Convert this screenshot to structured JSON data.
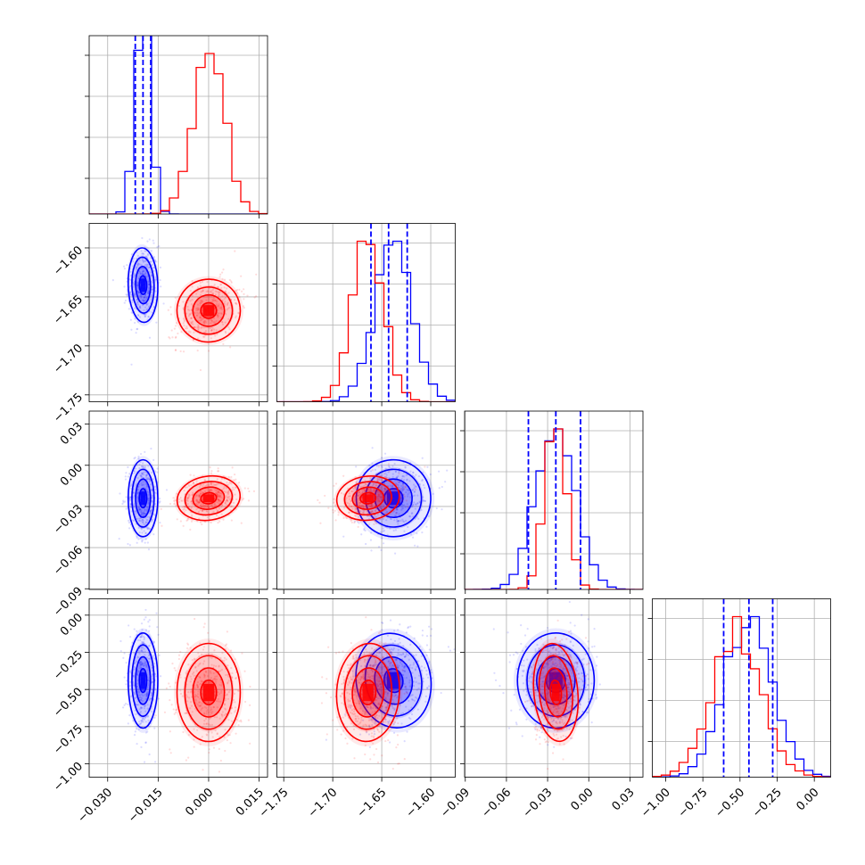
{
  "chart_data": {
    "type": "corner",
    "series": [
      {
        "name": "",
        "color": "#0000ff"
      },
      {
        "name": "",
        "color": "#ff0000"
      }
    ],
    "parameters": [
      {
        "range": [
          -0.0355,
          0.0175
        ],
        "ticks": [
          "−0.030",
          "−0.015",
          "0.000",
          "0.015"
        ],
        "tick_values": [
          -0.03,
          -0.015,
          0.0,
          0.015
        ]
      },
      {
        "range": [
          -1.757,
          -1.575
        ],
        "ticks": [
          "−1.75",
          "−1.70",
          "−1.65",
          "−1.60"
        ],
        "tick_values": [
          -1.75,
          -1.7,
          -1.65,
          -1.6
        ]
      },
      {
        "range": [
          -0.0905,
          0.0395
        ],
        "ticks": [
          "−0.09",
          "−0.06",
          "−0.03",
          "0.00",
          "0.03"
        ],
        "tick_values": [
          -0.09,
          -0.06,
          -0.03,
          0.0,
          0.03
        ]
      },
      {
        "range": [
          -1.09,
          0.11
        ],
        "ticks": [
          "−1.00",
          "−0.75",
          "−0.50",
          "−0.25",
          "0.00"
        ],
        "tick_values": [
          -1.0,
          -0.75,
          -0.5,
          -0.25,
          0.0
        ]
      }
    ],
    "distributions": {
      "blue": {
        "mean": [
          -0.0195,
          -1.638,
          -0.024,
          -0.44
        ],
        "std": [
          0.0022,
          0.019,
          0.014,
          0.16
        ]
      },
      "red": {
        "mean": [
          0.0,
          -1.664,
          -0.024,
          -0.52
        ],
        "std": [
          0.0047,
          0.016,
          0.008,
          0.165
        ]
      }
    },
    "quantile_lines": {
      "color": "#0000ff",
      "values": [
        [
          -0.0218,
          -0.0195,
          -0.0172
        ],
        [
          -1.661,
          -1.643,
          -1.624
        ],
        [
          -0.044,
          -0.024,
          -0.006
        ],
        [
          -0.61,
          -0.44,
          -0.28
        ]
      ]
    },
    "grid": true
  }
}
